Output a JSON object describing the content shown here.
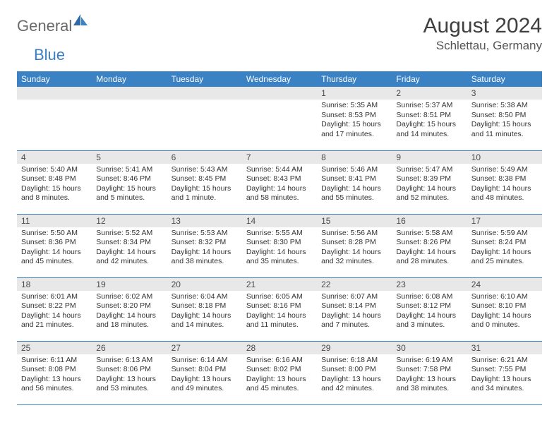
{
  "logo": {
    "text1": "General",
    "text2": "Blue"
  },
  "title": "August 2024",
  "location": "Schlettau, Germany",
  "colors": {
    "header_bg": "#3a82c4",
    "header_text": "#ffffff",
    "daynum_bg": "#e8e8e8",
    "border": "#3a82c4",
    "logo_gray": "#6a6a6a",
    "logo_blue": "#3a7fc4"
  },
  "dayHeaders": [
    "Sunday",
    "Monday",
    "Tuesday",
    "Wednesday",
    "Thursday",
    "Friday",
    "Saturday"
  ],
  "weeks": [
    [
      null,
      null,
      null,
      null,
      {
        "n": "1",
        "sr": "5:35 AM",
        "ss": "8:53 PM",
        "dl": "15 hours and 17 minutes."
      },
      {
        "n": "2",
        "sr": "5:37 AM",
        "ss": "8:51 PM",
        "dl": "15 hours and 14 minutes."
      },
      {
        "n": "3",
        "sr": "5:38 AM",
        "ss": "8:50 PM",
        "dl": "15 hours and 11 minutes."
      }
    ],
    [
      {
        "n": "4",
        "sr": "5:40 AM",
        "ss": "8:48 PM",
        "dl": "15 hours and 8 minutes."
      },
      {
        "n": "5",
        "sr": "5:41 AM",
        "ss": "8:46 PM",
        "dl": "15 hours and 5 minutes."
      },
      {
        "n": "6",
        "sr": "5:43 AM",
        "ss": "8:45 PM",
        "dl": "15 hours and 1 minute."
      },
      {
        "n": "7",
        "sr": "5:44 AM",
        "ss": "8:43 PM",
        "dl": "14 hours and 58 minutes."
      },
      {
        "n": "8",
        "sr": "5:46 AM",
        "ss": "8:41 PM",
        "dl": "14 hours and 55 minutes."
      },
      {
        "n": "9",
        "sr": "5:47 AM",
        "ss": "8:39 PM",
        "dl": "14 hours and 52 minutes."
      },
      {
        "n": "10",
        "sr": "5:49 AM",
        "ss": "8:38 PM",
        "dl": "14 hours and 48 minutes."
      }
    ],
    [
      {
        "n": "11",
        "sr": "5:50 AM",
        "ss": "8:36 PM",
        "dl": "14 hours and 45 minutes."
      },
      {
        "n": "12",
        "sr": "5:52 AM",
        "ss": "8:34 PM",
        "dl": "14 hours and 42 minutes."
      },
      {
        "n": "13",
        "sr": "5:53 AM",
        "ss": "8:32 PM",
        "dl": "14 hours and 38 minutes."
      },
      {
        "n": "14",
        "sr": "5:55 AM",
        "ss": "8:30 PM",
        "dl": "14 hours and 35 minutes."
      },
      {
        "n": "15",
        "sr": "5:56 AM",
        "ss": "8:28 PM",
        "dl": "14 hours and 32 minutes."
      },
      {
        "n": "16",
        "sr": "5:58 AM",
        "ss": "8:26 PM",
        "dl": "14 hours and 28 minutes."
      },
      {
        "n": "17",
        "sr": "5:59 AM",
        "ss": "8:24 PM",
        "dl": "14 hours and 25 minutes."
      }
    ],
    [
      {
        "n": "18",
        "sr": "6:01 AM",
        "ss": "8:22 PM",
        "dl": "14 hours and 21 minutes."
      },
      {
        "n": "19",
        "sr": "6:02 AM",
        "ss": "8:20 PM",
        "dl": "14 hours and 18 minutes."
      },
      {
        "n": "20",
        "sr": "6:04 AM",
        "ss": "8:18 PM",
        "dl": "14 hours and 14 minutes."
      },
      {
        "n": "21",
        "sr": "6:05 AM",
        "ss": "8:16 PM",
        "dl": "14 hours and 11 minutes."
      },
      {
        "n": "22",
        "sr": "6:07 AM",
        "ss": "8:14 PM",
        "dl": "14 hours and 7 minutes."
      },
      {
        "n": "23",
        "sr": "6:08 AM",
        "ss": "8:12 PM",
        "dl": "14 hours and 3 minutes."
      },
      {
        "n": "24",
        "sr": "6:10 AM",
        "ss": "8:10 PM",
        "dl": "14 hours and 0 minutes."
      }
    ],
    [
      {
        "n": "25",
        "sr": "6:11 AM",
        "ss": "8:08 PM",
        "dl": "13 hours and 56 minutes."
      },
      {
        "n": "26",
        "sr": "6:13 AM",
        "ss": "8:06 PM",
        "dl": "13 hours and 53 minutes."
      },
      {
        "n": "27",
        "sr": "6:14 AM",
        "ss": "8:04 PM",
        "dl": "13 hours and 49 minutes."
      },
      {
        "n": "28",
        "sr": "6:16 AM",
        "ss": "8:02 PM",
        "dl": "13 hours and 45 minutes."
      },
      {
        "n": "29",
        "sr": "6:18 AM",
        "ss": "8:00 PM",
        "dl": "13 hours and 42 minutes."
      },
      {
        "n": "30",
        "sr": "6:19 AM",
        "ss": "7:58 PM",
        "dl": "13 hours and 38 minutes."
      },
      {
        "n": "31",
        "sr": "6:21 AM",
        "ss": "7:55 PM",
        "dl": "13 hours and 34 minutes."
      }
    ]
  ],
  "labels": {
    "sunrise": "Sunrise: ",
    "sunset": "Sunset: ",
    "daylight": "Daylight: "
  }
}
